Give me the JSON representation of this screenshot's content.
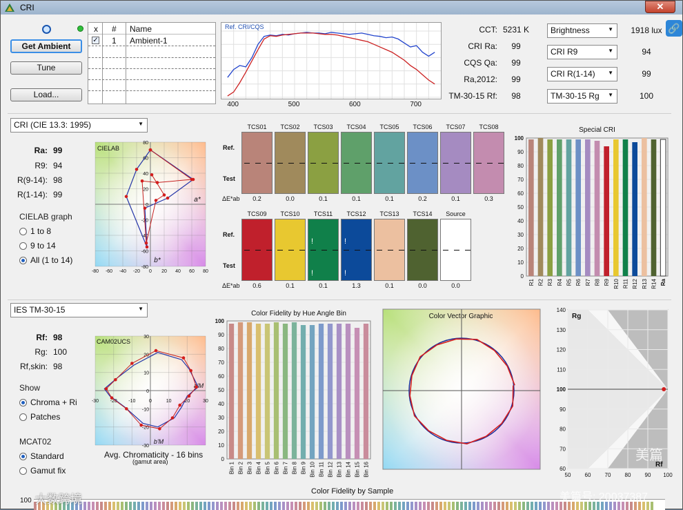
{
  "window": {
    "title": "CRI",
    "close_label": "✕"
  },
  "ambient": {
    "get_ambient_label": "Get Ambient",
    "tune_label": "Tune",
    "load_label": "Load...",
    "table_headers": [
      "x",
      "#",
      "Name"
    ],
    "rows": [
      {
        "checked": true,
        "num": "1",
        "name": "Ambient-1"
      }
    ]
  },
  "spectrum_chart": {
    "chart_data": {
      "type": "line",
      "title": "Ref. CRI/CQS",
      "x_ticks": [
        "400",
        "500",
        "600",
        "700"
      ],
      "series": [
        {
          "color": "#2244cc",
          "x": [
            390,
            400,
            410,
            420,
            430,
            440,
            450,
            460,
            470,
            480,
            490,
            500,
            510,
            520,
            530,
            540,
            550,
            560,
            570,
            580,
            590,
            600,
            610,
            620,
            630,
            640,
            650,
            660,
            670,
            680,
            690,
            700,
            710,
            720,
            730
          ],
          "y": [
            30,
            42,
            48,
            46,
            60,
            80,
            92,
            94,
            93,
            95,
            94,
            96,
            97,
            98,
            97,
            97,
            96,
            98,
            97,
            96,
            95,
            96,
            97,
            95,
            93,
            92,
            90,
            91,
            88,
            82,
            76,
            78,
            68,
            62,
            68
          ]
        },
        {
          "color": "#cc2222",
          "x": [
            390,
            400,
            410,
            420,
            430,
            440,
            450,
            460,
            470,
            480,
            490,
            500,
            510,
            520,
            530,
            540,
            550,
            560,
            570,
            580,
            590,
            600,
            610,
            620,
            630,
            640,
            650,
            660,
            670,
            680,
            690,
            700,
            710,
            720,
            730
          ],
          "y": [
            2,
            8,
            22,
            38,
            55,
            72,
            88,
            93,
            92,
            94,
            95,
            96,
            97,
            97,
            97,
            96,
            95,
            95,
            94,
            92,
            90,
            88,
            86,
            84,
            80,
            76,
            72,
            68,
            62,
            56,
            48,
            42,
            34,
            26,
            20
          ]
        }
      ]
    }
  },
  "summary": {
    "labels": [
      "CCT:",
      "CRI Ra:",
      "CQS Qa:",
      "Ra,2012:",
      "TM-30-15 Rf:"
    ],
    "values": [
      "5231 K",
      "99",
      "99",
      "99",
      "98"
    ],
    "dropdowns": [
      "Brightness",
      "CRI R9",
      "CRI R(1-14)",
      "TM-30-15 Rg"
    ],
    "dropdown_values": [
      "1918 lux",
      "94",
      "99",
      "100"
    ]
  },
  "cri_section": {
    "method_select": "CRI (CIE 13.3: 1995)",
    "stats_labels": [
      "Ra:",
      "R9:",
      "R(9-14):",
      "R(1-14):"
    ],
    "stats_values": [
      "99",
      "94",
      "98",
      "99"
    ],
    "graph_group_title": "CIELAB graph",
    "radio_options": [
      "1 to 8",
      "9 to 14",
      "All (1 to 14)"
    ],
    "selected_radio": 2,
    "cielab_label": "CIELAB",
    "axis_a": "a*",
    "axis_b": "b*",
    "x_ticks": [
      "-80",
      "-60",
      "-40",
      "-20",
      "0",
      "20",
      "40",
      "60",
      "80"
    ],
    "y_ticks": [
      "80",
      "60",
      "40",
      "20",
      "0",
      "-20",
      "-40",
      "-60",
      "-80"
    ],
    "row_labels": {
      "ref": "Ref.",
      "test": "Test",
      "de": "ΔE*ab"
    },
    "swatches_row1": [
      {
        "name": "TCS01",
        "color": "#b98479",
        "de": "0.2"
      },
      {
        "name": "TCS02",
        "color": "#a08a5c",
        "de": "0.0"
      },
      {
        "name": "TCS03",
        "color": "#8ba042",
        "de": "0.1"
      },
      {
        "name": "TCS04",
        "color": "#5fa06a",
        "de": "0.1"
      },
      {
        "name": "TCS05",
        "color": "#62a3a0",
        "de": "0.1"
      },
      {
        "name": "TCS06",
        "color": "#6c90c6",
        "de": "0.2"
      },
      {
        "name": "TCS07",
        "color": "#a58bc1",
        "de": "0.1"
      },
      {
        "name": "TCS08",
        "color": "#c38caf",
        "de": "0.3"
      }
    ],
    "swatches_row2": [
      {
        "name": "TCS09",
        "color": "#c0202c",
        "de": "0.6"
      },
      {
        "name": "TCS10",
        "color": "#e8c830",
        "de": "0.1"
      },
      {
        "name": "TCS11",
        "color": "#10804a",
        "de": "0.1"
      },
      {
        "name": "TCS12",
        "color": "#0c4a9a",
        "de": "1.3"
      },
      {
        "name": "TCS13",
        "color": "#ecc0a0",
        "de": "0.1"
      },
      {
        "name": "TCS14",
        "color": "#4f6230",
        "de": "0.0"
      },
      {
        "name": "Source",
        "color": "#ffffff",
        "de": "0.0"
      }
    ],
    "warning_mark": "!",
    "special_cri": {
      "chart_data": {
        "type": "bar",
        "title": "Special CRI",
        "categories": [
          "R1",
          "R2",
          "R3",
          "R4",
          "R5",
          "R6",
          "R7",
          "R8",
          "R9",
          "R10",
          "R11",
          "R12",
          "R13",
          "R14",
          "Ra"
        ],
        "values": [
          99,
          100,
          99,
          99,
          99,
          99,
          99,
          98,
          94,
          99,
          99,
          97,
          100,
          99,
          99
        ],
        "colors": [
          "#b98479",
          "#a08a5c",
          "#8ba042",
          "#5fa06a",
          "#62a3a0",
          "#6c90c6",
          "#a58bc1",
          "#c38caf",
          "#c0202c",
          "#e8c830",
          "#10804a",
          "#0c4a9a",
          "#ecc0a0",
          "#4f6230",
          "#ffffff"
        ],
        "ylim": [
          0,
          100
        ],
        "y_ticks": [
          "100",
          "90",
          "80",
          "70",
          "60",
          "50",
          "40",
          "30",
          "20",
          "10",
          "0"
        ]
      }
    }
  },
  "tm30_section": {
    "method_select": "IES TM-30-15",
    "stats_labels": [
      "Rf:",
      "Rg:",
      "Rf,skin:"
    ],
    "stats_values": [
      "98",
      "100",
      "98"
    ],
    "show_title": "Show",
    "show_options": [
      "Chroma + Ri",
      "Patches"
    ],
    "show_selected": 0,
    "mcat_title": "MCAT02",
    "mcat_options": [
      "Standard",
      "Gamut fix"
    ],
    "mcat_selected": 0,
    "cam_label": "CAM02UCS",
    "cam_axis_a": "a'M",
    "cam_axis_b": "b'M",
    "cam_x_ticks": [
      "-30",
      "-20",
      "-10",
      "0",
      "10",
      "20",
      "30"
    ],
    "cam_y_ticks": [
      "30",
      "20",
      "10",
      "0",
      "-10",
      "-20",
      "-30"
    ],
    "cam_caption": "Avg. Chromaticity - 16 bins",
    "cam_sub": "(gamut area)",
    "hue_bins": {
      "chart_data": {
        "type": "bar",
        "title": "Color Fidelity by Hue Angle Bin",
        "categories": [
          "Bin 1",
          "Bin 2",
          "Bin 3",
          "Bin 4",
          "Bin 5",
          "Bin 6",
          "Bin 7",
          "Bin 8",
          "Bin 9",
          "Bin 10",
          "Bin 11",
          "Bin 12",
          "Bin 13",
          "Bin 14",
          "Bin 15",
          "Bin 16"
        ],
        "values": [
          98,
          99,
          99,
          98,
          98,
          99,
          98,
          99,
          97,
          97,
          98,
          98,
          98,
          98,
          95,
          98
        ],
        "colors": [
          "#c88a88",
          "#d59a7a",
          "#d8a86c",
          "#d9bf6e",
          "#c9c575",
          "#a8bf72",
          "#8ab780",
          "#7bb39b",
          "#72aeae",
          "#73a4c0",
          "#7d9acb",
          "#9297cd",
          "#a890c6",
          "#b98fbf",
          "#c68fb4",
          "#c98c9c"
        ],
        "ylim": [
          0,
          100
        ],
        "y_ticks": [
          "100",
          "90",
          "80",
          "70",
          "60",
          "50",
          "40",
          "30",
          "20",
          "10",
          "0"
        ]
      }
    },
    "vector_title": "Color Vector Graphic",
    "rfrg": {
      "label_rg": "Rg",
      "label_rf": "Rf",
      "x_ticks": [
        "50",
        "60",
        "70",
        "80",
        "90",
        "100"
      ],
      "y_ticks": [
        "140",
        "130",
        "120",
        "110",
        "100",
        "90",
        "80",
        "70",
        "60"
      ],
      "point": {
        "rf": 98,
        "rg": 100
      }
    }
  },
  "bottom": {
    "title": "Color Fidelity by Sample",
    "y_tick": "100"
  },
  "overlay": {
    "help_icon_symbol": "🔗",
    "watermark_left": "大数跨境",
    "watermark_right_top": "美篇",
    "watermark_right_bottom": "美篇号: 20037387"
  }
}
